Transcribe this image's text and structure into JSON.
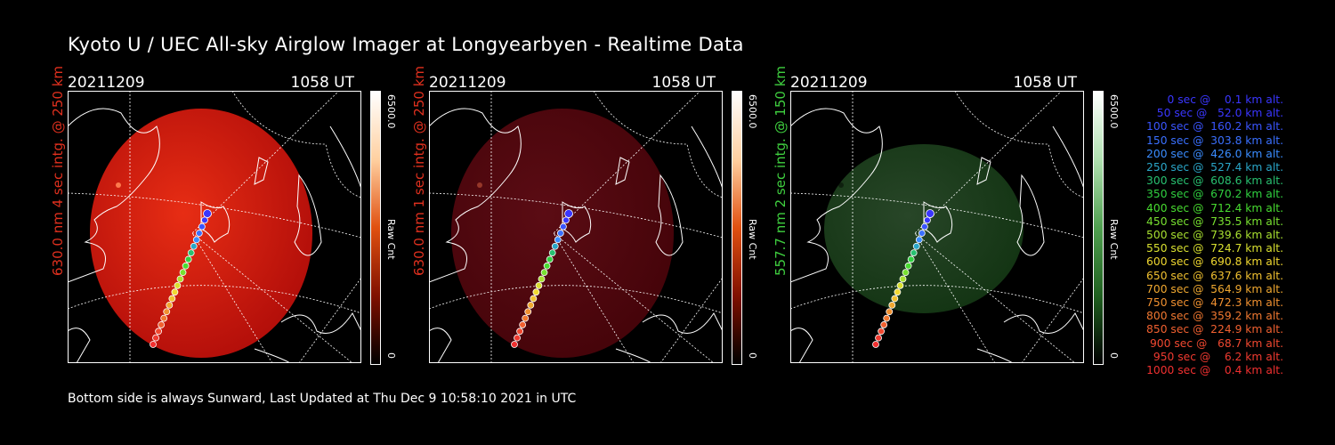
{
  "title": "Kyoto U / UEC All-sky Airglow Imager at Longyearbyen - Realtime Data",
  "footer": "Bottom side is always Sunward, Last Updated at Thu Dec  9 10:58:10 2021 in UTC",
  "chart_data": [
    {
      "type": "heatmap",
      "date": "20211209",
      "time": "1058 UT",
      "ylabel": "630.0 nm 4 sec intg. @ 250 km",
      "label_color": "#e0301e",
      "colorbar": {
        "max": "6500.0",
        "min": "0",
        "unit": "Raw Cnt",
        "colormap": "red"
      },
      "intensity": 0.75
    },
    {
      "type": "heatmap",
      "date": "20211209",
      "time": "1058 UT",
      "ylabel": "630.0 nm 1 sec intg. @ 250 km",
      "label_color": "#e0301e",
      "colorbar": {
        "max": "6500.0",
        "min": "0",
        "unit": "Raw Cnt",
        "colormap": "red"
      },
      "intensity": 0.2
    },
    {
      "type": "heatmap",
      "date": "20211209",
      "time": "1058 UT",
      "ylabel": "557.7 nm 2 sec intg. @ 150 km",
      "label_color": "#3fcf3f",
      "colorbar": {
        "max": "6500.0",
        "min": "0",
        "unit": "Raw Cnt",
        "colormap": "green"
      },
      "intensity": 0.25
    }
  ],
  "trajectory_legend": [
    {
      "text": "0 sec @    0.1 km alt.",
      "color": "#3a36ff"
    },
    {
      "text": "50 sec @   52.0 km alt.",
      "color": "#3a36ff"
    },
    {
      "text": "100 sec @  160.2 km alt.",
      "color": "#3a55ff"
    },
    {
      "text": "150 sec @  303.8 km alt.",
      "color": "#3a70ff"
    },
    {
      "text": "200 sec @  426.0 km alt.",
      "color": "#3a8cff"
    },
    {
      "text": "250 sec @  527.4 km alt.",
      "color": "#2aa6c8"
    },
    {
      "text": "300 sec @  608.6 km alt.",
      "color": "#28c070"
    },
    {
      "text": "350 sec @  670.2 km alt.",
      "color": "#30d040"
    },
    {
      "text": "400 sec @  712.4 km alt.",
      "color": "#48dc30"
    },
    {
      "text": "450 sec @  735.5 km alt.",
      "color": "#78e030"
    },
    {
      "text": "500 sec @  739.6 km alt.",
      "color": "#a8e030"
    },
    {
      "text": "550 sec @  724.7 km alt.",
      "color": "#d8e030"
    },
    {
      "text": "600 sec @  690.8 km alt.",
      "color": "#f0d830"
    },
    {
      "text": "650 sec @  637.6 km alt.",
      "color": "#f0c030"
    },
    {
      "text": "700 sec @  564.9 km alt.",
      "color": "#f0a830"
    },
    {
      "text": "750 sec @  472.3 km alt.",
      "color": "#f09030"
    },
    {
      "text": "800 sec @  359.2 km alt.",
      "color": "#f07830"
    },
    {
      "text": "850 sec @  224.9 km alt.",
      "color": "#f06030"
    },
    {
      "text": "900 sec @   68.7 km alt.",
      "color": "#f04830"
    },
    {
      "text": "950 sec @    6.2 km alt.",
      "color": "#f03a30"
    },
    {
      "text": "1000 sec @    0.4 km alt.",
      "color": "#f03030"
    }
  ]
}
